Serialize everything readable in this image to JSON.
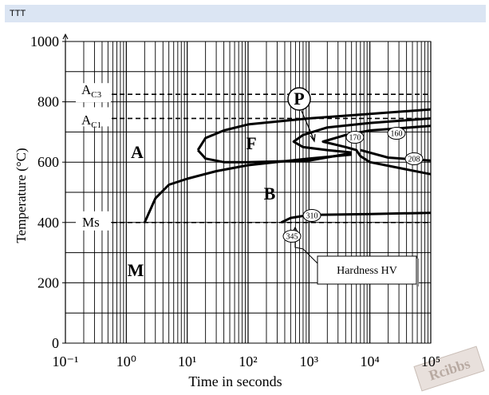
{
  "header": {
    "title": "TTT"
  },
  "chart_data": {
    "type": "line",
    "xlabel": "Time in seconds",
    "ylabel": "Temperature (°C)",
    "xscale": "log",
    "xlim": [
      0.1,
      100000
    ],
    "xticks": [
      {
        "value": 0.1,
        "label": "10⁻¹"
      },
      {
        "value": 1,
        "label": "10⁰"
      },
      {
        "value": 10,
        "label": "10¹"
      },
      {
        "value": 100,
        "label": "10²"
      },
      {
        "value": 1000,
        "label": "10³"
      },
      {
        "value": 10000,
        "label": "10⁴"
      },
      {
        "value": 100000,
        "label": "10⁵"
      }
    ],
    "ylim": [
      0,
      1000
    ],
    "yticks": [
      0,
      200,
      400,
      600,
      800,
      1000
    ],
    "ygrid": [
      100,
      300,
      500,
      700,
      900
    ],
    "grid": true,
    "reference_lines": [
      {
        "value": 825,
        "label": "A",
        "sub": "C3"
      },
      {
        "value": 745,
        "label": "A",
        "sub": "C1"
      },
      {
        "value": 400,
        "label": "Ms"
      }
    ],
    "series": [
      {
        "color": "#000000",
        "x": [
          15,
          20,
          40,
          100,
          1000,
          10000,
          100000
        ],
        "values": [
          640,
          680,
          705,
          725,
          745,
          760,
          775
        ]
      },
      {
        "color": "#000000",
        "x": [
          15,
          20,
          40,
          100,
          1000,
          5000
        ],
        "values": [
          640,
          612,
          600,
          600,
          605,
          630
        ]
      },
      {
        "color": "#000000",
        "x": [
          2,
          3,
          5,
          10,
          30,
          100,
          1000,
          5000
        ],
        "values": [
          400,
          480,
          525,
          545,
          570,
          590,
          612,
          625
        ]
      },
      {
        "color": "#000000",
        "x": [
          100000,
          10000,
          2000,
          800,
          560,
          800,
          2000,
          5000
        ],
        "values": [
          745,
          730,
          715,
          690,
          668,
          650,
          640,
          632
        ]
      },
      {
        "color": "#000000",
        "x": [
          100000,
          10000,
          4000,
          1700,
          4000,
          6000,
          7000,
          10000,
          100000
        ],
        "values": [
          720,
          705,
          690,
          668,
          650,
          640,
          620,
          600,
          560
        ]
      },
      {
        "color": "#000000",
        "x": [
          7000,
          20000,
          100000
        ],
        "values": [
          640,
          615,
          605
        ]
      },
      {
        "color": "#000000",
        "x": [
          350,
          500,
          1000,
          10000,
          100000
        ],
        "values": [
          400,
          415,
          425,
          428,
          432
        ]
      }
    ],
    "annotations": [
      "A",
      "F",
      "P",
      "B",
      "M",
      "Hardness HV"
    ],
    "hardness_labels": [
      "170",
      "160",
      "208",
      "310",
      "345"
    ]
  },
  "watermark": "Rcibbs"
}
